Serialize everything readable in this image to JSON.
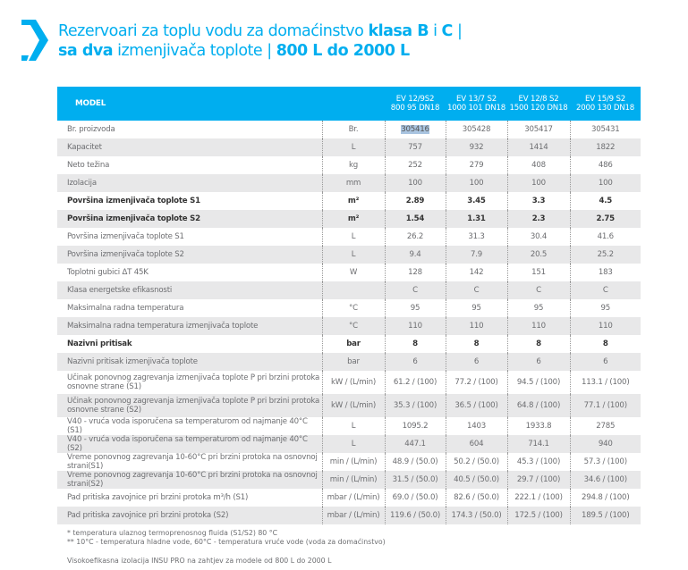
{
  "title": {
    "line1_pre": "Rezervoari za toplu vodu za domaćinstvo ",
    "line1_bold1": "klasa B",
    "line1_mid": " i ",
    "line1_bold2": "C",
    "line1_post": " |",
    "line2_bold1": "sa dva",
    "line2_mid": " izmenjivača toplote | ",
    "line2_bold2": "800 L do 2000 L"
  },
  "colors": {
    "accent": "#00aeef",
    "stripe": "#e8e8e9"
  },
  "table": {
    "header_label": "MODEL",
    "models": [
      {
        "line1": "EV 12/9S2",
        "line2": "800 95 DN18"
      },
      {
        "line1": "EV 13/7 S2",
        "line2": "1000 101 DN18"
      },
      {
        "line1": "EV 12/8 S2",
        "line2": "1500 120 DN18"
      },
      {
        "line1": "EV 15/9 S2",
        "line2": "2000 130 DN18"
      }
    ],
    "rows": [
      {
        "label": "Br. proizvoda",
        "unit": "Br.",
        "values": [
          "305416",
          "305428",
          "305417",
          "305431"
        ]
      },
      {
        "label": "Kapacitet",
        "unit": "L",
        "values": [
          "757",
          "932",
          "1414",
          "1822"
        ]
      },
      {
        "label": "Neto težina",
        "unit": "kg",
        "values": [
          "252",
          "279",
          "408",
          "486"
        ]
      },
      {
        "label": "Izolacija",
        "unit": "mm",
        "values": [
          "100",
          "100",
          "100",
          "100"
        ]
      },
      {
        "label": "Površina izmenjivača toplote S1",
        "unit": "m²",
        "values": [
          "2.89",
          "3.45",
          "3.3",
          "4.5"
        ],
        "bold": true
      },
      {
        "label": "Površina izmenjivača toplote S2",
        "unit": "m²",
        "values": [
          "1.54",
          "1.31",
          "2.3",
          "2.75"
        ],
        "bold": true
      },
      {
        "label": "Površina izmenjivača toplote  S1",
        "unit": "L",
        "values": [
          "26.2",
          "31.3",
          "30.4",
          "41.6"
        ]
      },
      {
        "label": "Površina izmenjivača toplote  S2",
        "unit": "L",
        "values": [
          "9.4",
          "7.9",
          "20.5",
          "25.2"
        ]
      },
      {
        "label": "Toplotni gubici ΔT 45K",
        "unit": "W",
        "values": [
          "128",
          "142",
          "151",
          "183"
        ]
      },
      {
        "label": "Klasa energetske efikasnosti",
        "unit": "",
        "values": [
          "C",
          "C",
          "C",
          "C"
        ]
      },
      {
        "label": "Maksimalna radna temperatura",
        "unit": "°C",
        "values": [
          "95",
          "95",
          "95",
          "95"
        ]
      },
      {
        "label": "Maksimalna radna temperatura izmenjivača toplote",
        "unit": "°C",
        "values": [
          "110",
          "110",
          "110",
          "110"
        ]
      },
      {
        "label": "Nazivni pritisak",
        "unit": "bar",
        "values": [
          "8",
          "8",
          "8",
          "8"
        ],
        "bold": true
      },
      {
        "label": "Nazivni pritisak izmenjivača toplote",
        "unit": "bar",
        "values": [
          "6",
          "6",
          "6",
          "6"
        ]
      },
      {
        "label": "Učinak ponovnog zagrevanja izmenjivača toplote P pri brzini protoka osnovne strane  (S1)",
        "unit": "kW / (L/min)",
        "values": [
          "61.2 / (100)",
          "77.2 / (100)",
          "94.5 / (100)",
          "113.1 / (100)"
        ],
        "tall": true
      },
      {
        "label": "Učinak ponovnog zagrevanja izmenjivača toplote P pri brzini protoka osnovne strane (S2)",
        "unit": "kW / (L/min)",
        "values": [
          "35.3 / (100)",
          "36.5 / (100)",
          "64.8 / (100)",
          "77.1 / (100)"
        ],
        "tall": true
      },
      {
        "label": "V40 - vruća voda isporučena sa temperaturom od najmanje  40°C (S1)",
        "unit": "L",
        "values": [
          "1095.2",
          "1403",
          "1933.8",
          "2785"
        ]
      },
      {
        "label": "V40 - vruća voda isporučena sa temperaturom od najmanje  40°C (S2)",
        "unit": "L",
        "values": [
          "447.1",
          "604",
          "714.1",
          "940"
        ]
      },
      {
        "label": "Vreme ponovnog zagrevanja 10-60°C pri brzini protoka na osnovnoj strani(S1)",
        "unit": "min / (L/min)",
        "values": [
          "48.9 / (50.0)",
          "50.2 / (50.0)",
          "45.3 / (100)",
          "57.3 / (100)"
        ]
      },
      {
        "label": "Vreme ponovnog zagrevanja 10-60°C pri brzini protoka na osnovnoj strani(S2)",
        "unit": "min / (L/min)",
        "values": [
          "31.5 / (50.0)",
          "40.5 / (50.0)",
          "29.7 / (100)",
          "34.6 / (100)"
        ]
      },
      {
        "label": "Pad pritiska zavojnice pri brzini protoka m³/h (S1)",
        "unit": "mbar / (L/min)",
        "values": [
          "69.0 / (50.0)",
          "82.6 / (50.0)",
          "222.1 / (100)",
          "294.8 / (100)"
        ]
      },
      {
        "label": "Pad pritiska zavojnice pri brzini protoka (S2)",
        "unit": "mbar / (L/min)",
        "values": [
          "119.6 / (50.0)",
          "174.3 / (50.0)",
          "172.5 / (100)",
          "189.5 / (100)"
        ]
      }
    ]
  },
  "notes": {
    "n1": "* temperatura ulaznog termoprenosnog fluida (S1/S2) 80 °C",
    "n2": "** 10°C - temperatura hladne vode, 60°C - temperatura vruće vode (voda za domaćinstvo)",
    "n3": "Visokoefikasna izolacija INSU PRO na zahtjev za modele od 800 L do 2000 L"
  }
}
